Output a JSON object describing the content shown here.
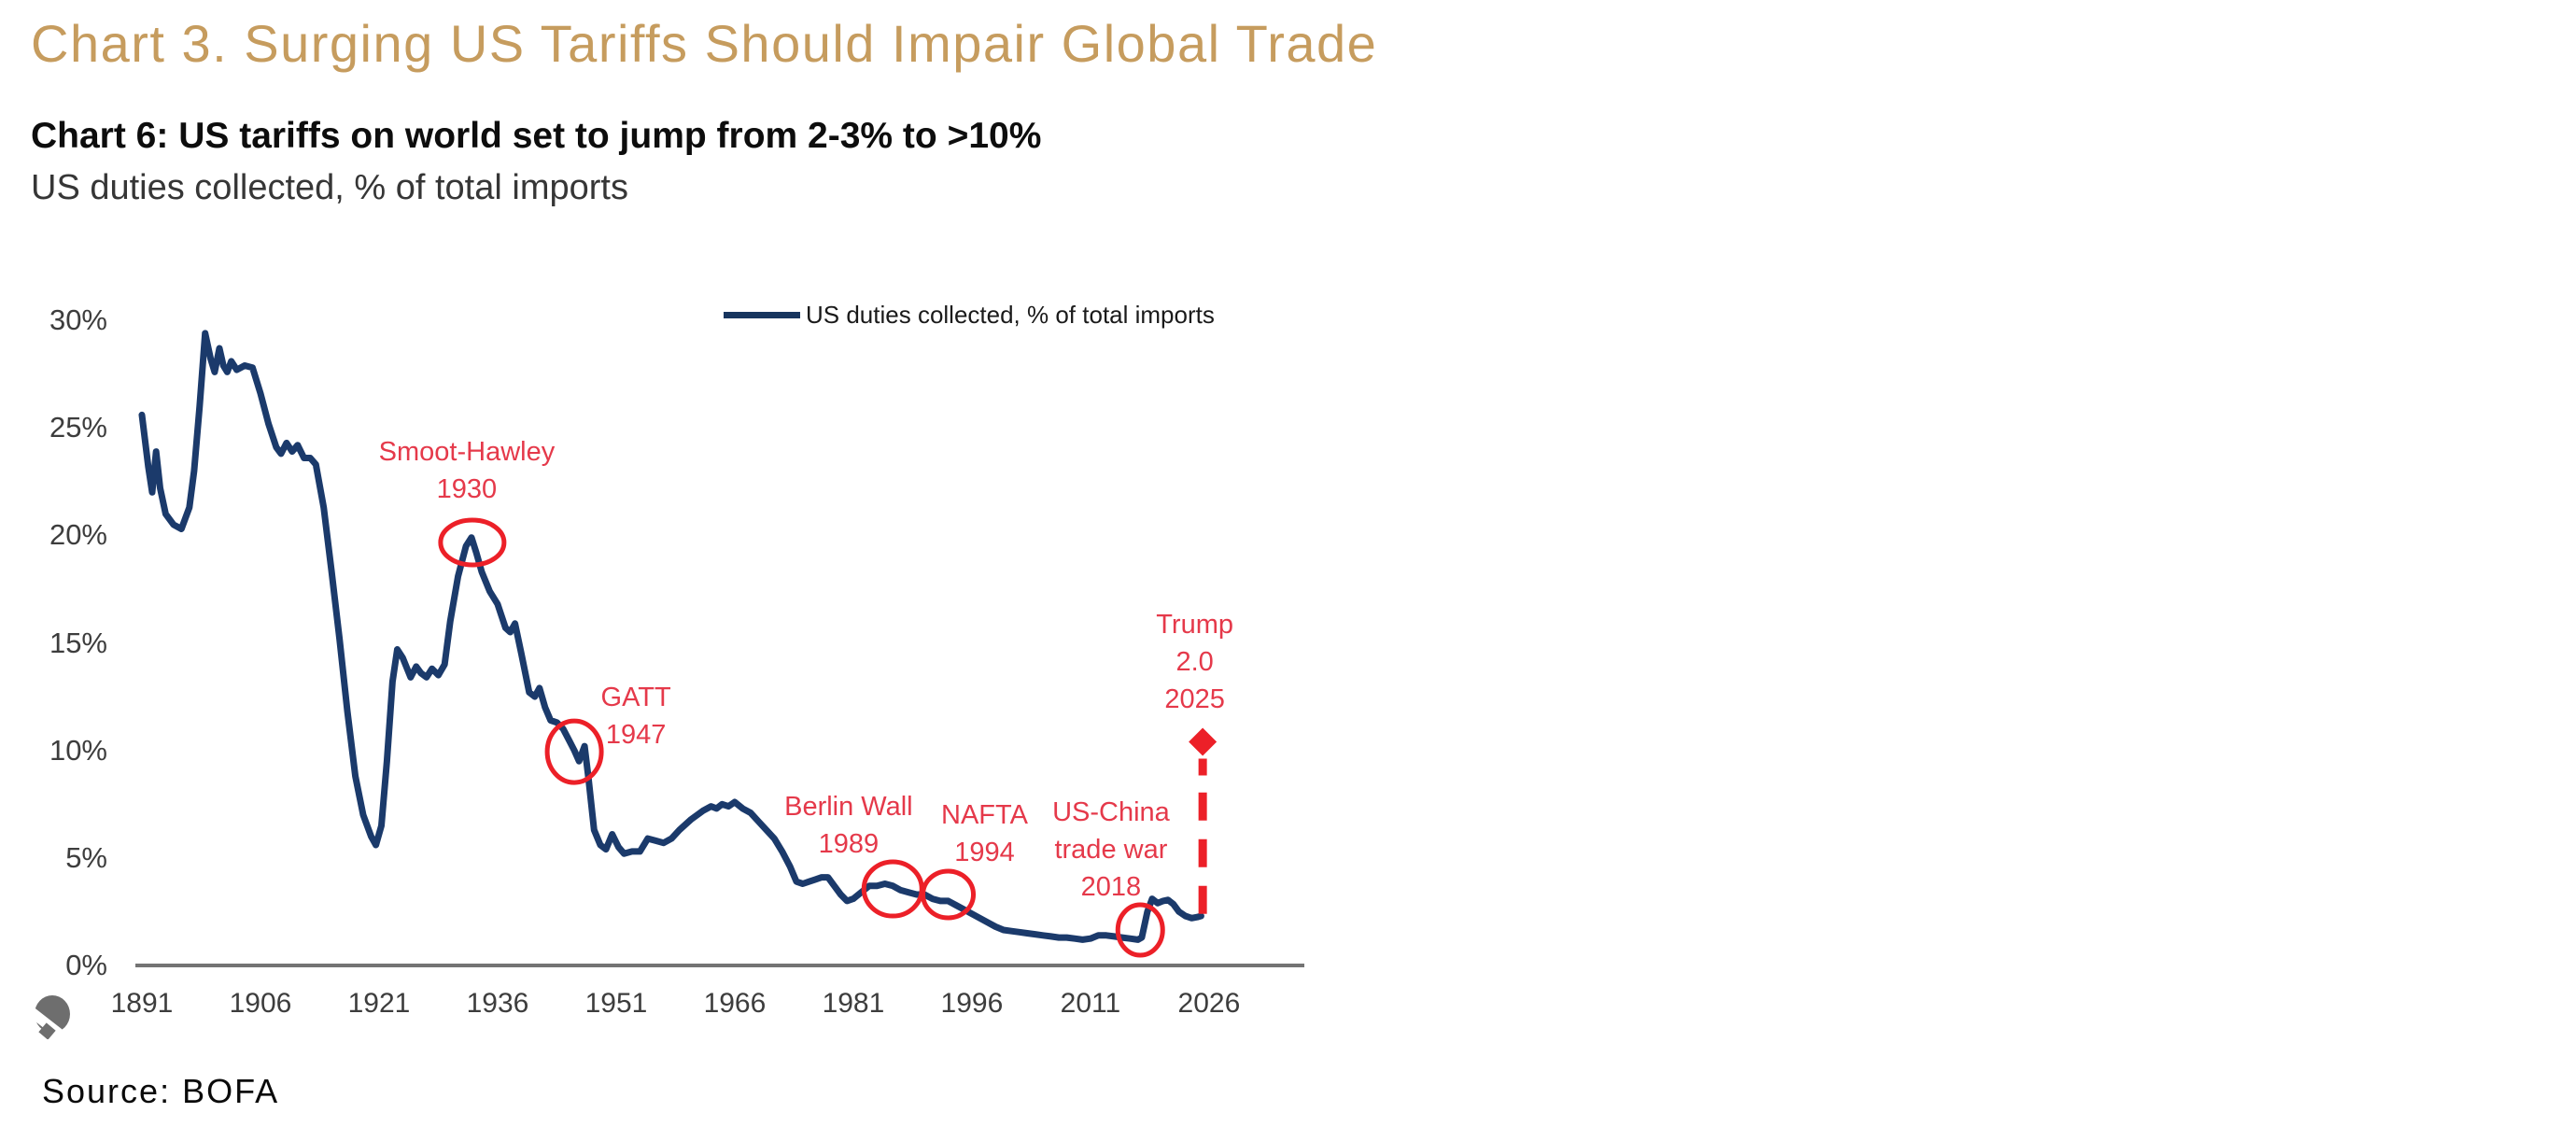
{
  "header": {
    "title": "Chart 3. Surging US Tariffs Should Impair Global Trade",
    "subtitle_bold": "Chart 6: US tariffs on world set to jump from 2-3% to >10%",
    "subtitle_plain": "US duties collected, % of total imports"
  },
  "footer": {
    "source": "Source: BOFA"
  },
  "colors": {
    "title_gold": "#c69c5e",
    "series_line": "#1b3a6b",
    "legend_line": "#17355e",
    "annotation_red": "#e5394a",
    "shape_red": "#ec2028",
    "axis_grey": "#747474",
    "tick_text": "#3d3d3d"
  },
  "chart_data": {
    "type": "line",
    "title": "Chart 6: US tariffs on world set to jump from 2-3% to >10%",
    "subtitle": "US duties collected, % of total imports",
    "xlabel": "",
    "ylabel": "US duties collected, % of total imports",
    "xlim": [
      1891,
      2026
    ],
    "ylim": [
      0,
      30
    ],
    "grid": false,
    "legend": {
      "label": "US duties collected, % of total imports",
      "position": "top-center"
    },
    "x_ticks": [
      1891,
      1906,
      1921,
      1936,
      1951,
      1966,
      1981,
      1996,
      2011,
      2026
    ],
    "y_ticks": [
      {
        "value": 30,
        "label": "30%"
      },
      {
        "value": 25,
        "label": "25%"
      },
      {
        "value": 20,
        "label": "20%"
      },
      {
        "value": 15,
        "label": "15%"
      },
      {
        "value": 10,
        "label": "10%"
      },
      {
        "value": 5,
        "label": "5%"
      },
      {
        "value": 0,
        "label": "0%"
      }
    ],
    "series": [
      {
        "name": "US duties collected, % of total imports",
        "points": [
          [
            1891,
            25.6
          ],
          [
            1891.8,
            23.2
          ],
          [
            1892.3,
            22.0
          ],
          [
            1892.8,
            23.9
          ],
          [
            1893.3,
            22.2
          ],
          [
            1894,
            21.0
          ],
          [
            1895,
            20.5
          ],
          [
            1896,
            20.3
          ],
          [
            1897,
            21.3
          ],
          [
            1897.6,
            23.0
          ],
          [
            1898.3,
            26.0
          ],
          [
            1899,
            29.4
          ],
          [
            1899.7,
            28.2
          ],
          [
            1900.2,
            27.6
          ],
          [
            1900.8,
            28.7
          ],
          [
            1901.3,
            27.9
          ],
          [
            1901.8,
            27.6
          ],
          [
            1902.3,
            28.1
          ],
          [
            1903,
            27.7
          ],
          [
            1904,
            27.9
          ],
          [
            1905,
            27.8
          ],
          [
            1906,
            26.6
          ],
          [
            1907,
            25.2
          ],
          [
            1908,
            24.1
          ],
          [
            1908.6,
            23.8
          ],
          [
            1909.3,
            24.3
          ],
          [
            1910,
            23.9
          ],
          [
            1910.7,
            24.2
          ],
          [
            1911.5,
            23.6
          ],
          [
            1912.3,
            23.6
          ],
          [
            1913,
            23.3
          ],
          [
            1914,
            21.3
          ],
          [
            1915,
            18.3
          ],
          [
            1916,
            15.2
          ],
          [
            1917,
            11.8
          ],
          [
            1918,
            8.8
          ],
          [
            1919,
            7.0
          ],
          [
            1920,
            6.0
          ],
          [
            1920.6,
            5.6
          ],
          [
            1921.3,
            6.5
          ],
          [
            1922,
            9.5
          ],
          [
            1922.7,
            13.2
          ],
          [
            1923.3,
            14.7
          ],
          [
            1924,
            14.3
          ],
          [
            1925,
            13.4
          ],
          [
            1925.7,
            13.9
          ],
          [
            1926.3,
            13.6
          ],
          [
            1927,
            13.4
          ],
          [
            1927.7,
            13.8
          ],
          [
            1928.5,
            13.5
          ],
          [
            1929.3,
            14.0
          ],
          [
            1930,
            16.0
          ],
          [
            1931,
            18.1
          ],
          [
            1932,
            19.5
          ],
          [
            1932.7,
            19.9
          ],
          [
            1933.3,
            19.2
          ],
          [
            1934,
            18.3
          ],
          [
            1935,
            17.4
          ],
          [
            1936,
            16.8
          ],
          [
            1937,
            15.7
          ],
          [
            1937.6,
            15.5
          ],
          [
            1938.2,
            15.9
          ],
          [
            1939,
            14.5
          ],
          [
            1940,
            12.7
          ],
          [
            1940.7,
            12.5
          ],
          [
            1941.3,
            12.9
          ],
          [
            1942,
            12.0
          ],
          [
            1942.7,
            11.4
          ],
          [
            1943.5,
            11.3
          ],
          [
            1944.3,
            11.0
          ],
          [
            1945,
            10.5
          ],
          [
            1945.7,
            10.0
          ],
          [
            1946.3,
            9.5
          ],
          [
            1947,
            10.2
          ],
          [
            1947.5,
            8.7
          ],
          [
            1948.2,
            6.3
          ],
          [
            1949,
            5.6
          ],
          [
            1949.7,
            5.4
          ],
          [
            1950.5,
            6.1
          ],
          [
            1951.3,
            5.5
          ],
          [
            1952,
            5.2
          ],
          [
            1953,
            5.3
          ],
          [
            1954,
            5.3
          ],
          [
            1955,
            5.9
          ],
          [
            1956,
            5.8
          ],
          [
            1957,
            5.7
          ],
          [
            1958,
            5.9
          ],
          [
            1959,
            6.3
          ],
          [
            1960.5,
            6.8
          ],
          [
            1962,
            7.2
          ],
          [
            1963,
            7.4
          ],
          [
            1963.7,
            7.3
          ],
          [
            1964.4,
            7.5
          ],
          [
            1965.2,
            7.4
          ],
          [
            1966,
            7.6
          ],
          [
            1967,
            7.3
          ],
          [
            1968,
            7.1
          ],
          [
            1969,
            6.7
          ],
          [
            1970,
            6.3
          ],
          [
            1971,
            5.9
          ],
          [
            1972,
            5.3
          ],
          [
            1973,
            4.6
          ],
          [
            1973.8,
            3.9
          ],
          [
            1974.6,
            3.8
          ],
          [
            1975.4,
            3.9
          ],
          [
            1976.2,
            4.0
          ],
          [
            1977,
            4.1
          ],
          [
            1977.8,
            4.1
          ],
          [
            1978.6,
            3.7
          ],
          [
            1979.4,
            3.3
          ],
          [
            1980.2,
            3.0
          ],
          [
            1981,
            3.1
          ],
          [
            1982,
            3.4
          ],
          [
            1983,
            3.7
          ],
          [
            1984,
            3.7
          ],
          [
            1985,
            3.8
          ],
          [
            1986,
            3.7
          ],
          [
            1987,
            3.5
          ],
          [
            1988,
            3.4
          ],
          [
            1989,
            3.3
          ],
          [
            1990,
            3.3
          ],
          [
            1991,
            3.1
          ],
          [
            1992,
            3.0
          ],
          [
            1993,
            3.0
          ],
          [
            1994,
            2.8
          ],
          [
            1995,
            2.6
          ],
          [
            1996,
            2.4
          ],
          [
            1997,
            2.2
          ],
          [
            1998,
            2.0
          ],
          [
            1999,
            1.8
          ],
          [
            2000,
            1.65
          ],
          [
            2001,
            1.6
          ],
          [
            2002,
            1.55
          ],
          [
            2003,
            1.5
          ],
          [
            2004,
            1.45
          ],
          [
            2005,
            1.4
          ],
          [
            2006,
            1.35
          ],
          [
            2007,
            1.3
          ],
          [
            2008,
            1.3
          ],
          [
            2009,
            1.25
          ],
          [
            2010,
            1.2
          ],
          [
            2011,
            1.25
          ],
          [
            2012,
            1.4
          ],
          [
            2013,
            1.4
          ],
          [
            2014,
            1.35
          ],
          [
            2015,
            1.3
          ],
          [
            2016,
            1.25
          ],
          [
            2017,
            1.2
          ],
          [
            2017.5,
            1.3
          ],
          [
            2018.2,
            2.5
          ],
          [
            2018.8,
            3.1
          ],
          [
            2019.5,
            2.9
          ],
          [
            2020.2,
            3.0
          ],
          [
            2020.8,
            3.05
          ],
          [
            2021.5,
            2.85
          ],
          [
            2022.2,
            2.5
          ],
          [
            2023,
            2.3
          ],
          [
            2023.8,
            2.2
          ],
          [
            2024.5,
            2.25
          ],
          [
            2025,
            2.3
          ]
        ]
      }
    ],
    "annotations": [
      {
        "id": "smoot-hawley",
        "lines": [
          "Smoot-Hawley",
          "1930"
        ],
        "year": 1932.1,
        "pct": 23.03
      },
      {
        "id": "gatt",
        "lines": [
          "GATT",
          "1947"
        ],
        "year": 1953.5,
        "pct": 11.59
      },
      {
        "id": "berlin-wall",
        "lines": [
          "Berlin Wall",
          "1989"
        ],
        "year": 1980.4,
        "pct": 6.53
      },
      {
        "id": "nafta",
        "lines": [
          "NAFTA",
          "1994"
        ],
        "year": 1997.6,
        "pct": 6.14
      },
      {
        "id": "us-china",
        "lines": [
          "US-China",
          "trade war",
          "2018"
        ],
        "year": 2013.6,
        "pct": 5.38
      },
      {
        "id": "trump",
        "lines": [
          "Trump",
          "2.0",
          "2025"
        ],
        "year": 2024.2,
        "pct": 14.13
      }
    ],
    "event_circles": [
      {
        "id": "smoot-hawley",
        "year": 1932.8,
        "pct": 19.67,
        "rx": 34,
        "ry": 24
      },
      {
        "id": "gatt",
        "year": 1945.7,
        "pct": 9.94,
        "rx": 29,
        "ry": 33
      },
      {
        "id": "berlin-wall",
        "year": 1986.0,
        "pct": 3.56,
        "rx": 31,
        "ry": 29
      },
      {
        "id": "nafta",
        "year": 1993.0,
        "pct": 3.3,
        "rx": 27,
        "ry": 25
      },
      {
        "id": "us-china",
        "year": 2017.3,
        "pct": 1.65,
        "rx": 24,
        "ry": 27
      }
    ],
    "projection_arrow": {
      "id": "trump-2025",
      "year": 2025.2,
      "from_pct": 2.4,
      "to_pct": 8.2,
      "tip_pct": 10.4
    }
  }
}
